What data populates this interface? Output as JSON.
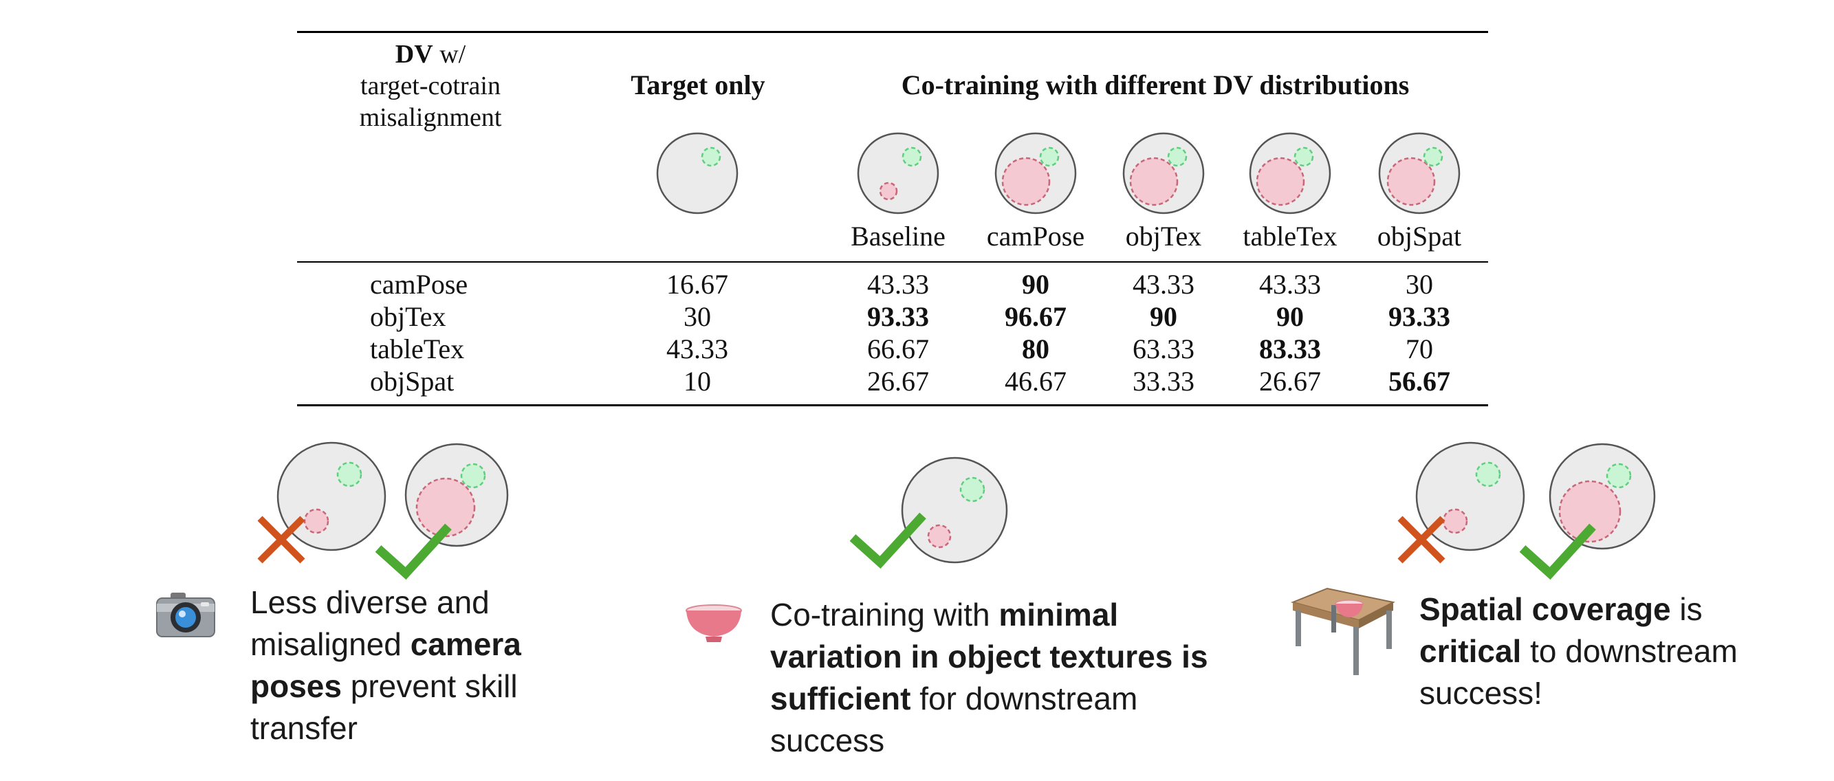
{
  "header": {
    "row_label_bold": "DV",
    "row_label_rest": " w/",
    "row_label_line2": "target-cotrain",
    "row_label_line3": "misalignment",
    "target_only": "Target only",
    "cotraining": "Co-training with different DV distributions"
  },
  "columns": [
    "Baseline",
    "camPose",
    "objTex",
    "tableTex",
    "objSpat"
  ],
  "rows": [
    {
      "label": "camPose",
      "cells": [
        {
          "v": "16.67",
          "b": false
        },
        {
          "v": "43.33",
          "b": false
        },
        {
          "v": "90",
          "b": true
        },
        {
          "v": "43.33",
          "b": false
        },
        {
          "v": "43.33",
          "b": false
        },
        {
          "v": "30",
          "b": false
        }
      ]
    },
    {
      "label": "objTex",
      "cells": [
        {
          "v": "30",
          "b": false
        },
        {
          "v": "93.33",
          "b": true
        },
        {
          "v": "96.67",
          "b": true
        },
        {
          "v": "90",
          "b": true
        },
        {
          "v": "90",
          "b": true
        },
        {
          "v": "93.33",
          "b": true
        }
      ]
    },
    {
      "label": "tableTex",
      "cells": [
        {
          "v": "43.33",
          "b": false
        },
        {
          "v": "66.67",
          "b": false
        },
        {
          "v": "80",
          "b": true
        },
        {
          "v": "63.33",
          "b": false
        },
        {
          "v": "83.33",
          "b": true
        },
        {
          "v": "70",
          "b": false
        }
      ]
    },
    {
      "label": "objSpat",
      "cells": [
        {
          "v": "10",
          "b": false
        },
        {
          "v": "26.67",
          "b": false
        },
        {
          "v": "46.67",
          "b": false
        },
        {
          "v": "33.33",
          "b": false
        },
        {
          "v": "26.67",
          "b": false
        },
        {
          "v": "56.67",
          "b": true
        }
      ]
    }
  ],
  "captions": {
    "cam": {
      "p1": "Less diverse and misaligned ",
      "b1": "camera poses",
      "p2": " prevent skill transfer"
    },
    "obj": {
      "p1": "Co-training with ",
      "b1": "minimal variation in object textures is sufficient",
      "p2": " for downstream success"
    },
    "spat": {
      "b1": "Spatial coverage",
      "p1": " is ",
      "b2": "critical",
      "p2": " to downstream success!"
    }
  },
  "colors": {
    "circle_fill": "#ebebeb",
    "circle_stroke": "#555555",
    "target_fill": "#c9f5d4",
    "target_stroke": "#5fcf7f",
    "cotrain_fill": "#f5c9d1",
    "cotrain_stroke": "#c9677a",
    "check": "#4caa33",
    "cross": "#d0531e"
  },
  "icons": [
    "camera-icon",
    "bowl-icon",
    "table-icon",
    "check-icon",
    "cross-icon"
  ]
}
